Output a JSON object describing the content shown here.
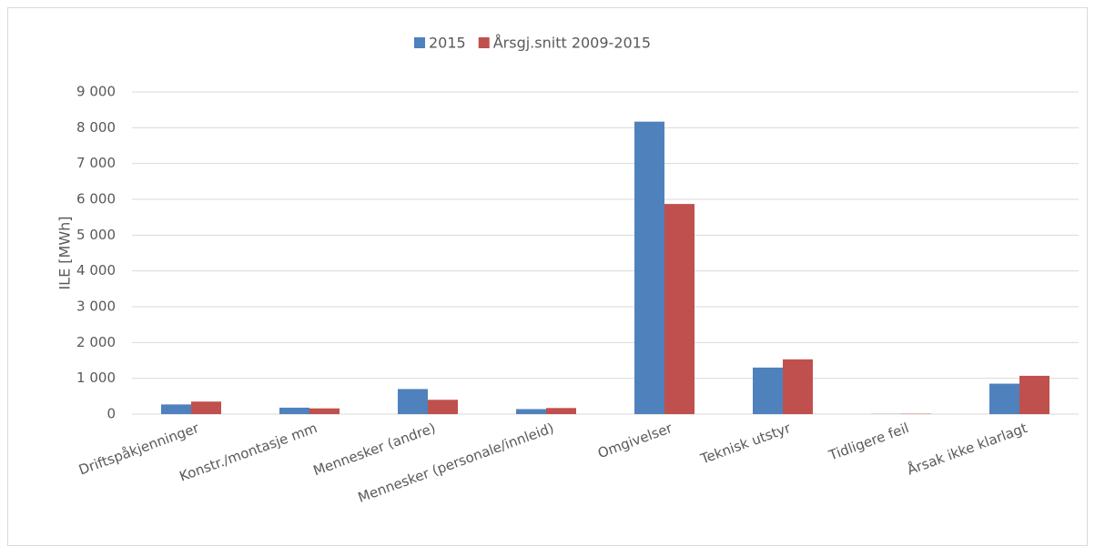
{
  "chart_data": {
    "type": "bar",
    "y_label": "ILE [MWh]",
    "categories": [
      "Driftspåkjenninger",
      "Konstr./montasje mm",
      "Mennesker (andre)",
      "Mennesker (personale/innleid)",
      "Omgivelser",
      "Teknisk utstyr",
      "Tidligere feil",
      "Årsak ikke klarlagt"
    ],
    "series": [
      {
        "name": "2015",
        "color": "#4f81bd",
        "values": [
          270,
          180,
          700,
          140,
          8170,
          1300,
          5,
          850
        ]
      },
      {
        "name": "Årsgj.snitt 2009-2015",
        "color": "#c0504d",
        "values": [
          350,
          160,
          400,
          170,
          5870,
          1530,
          10,
          1070
        ]
      }
    ],
    "ylim": [
      0,
      9000
    ],
    "yticks": [
      0,
      {
        "value": 1000,
        "label": "1 000"
      },
      {
        "value": 2000,
        "label": "2 000"
      },
      {
        "value": 3000,
        "label": "3 000"
      },
      {
        "value": 4000,
        "label": "4 000"
      },
      {
        "value": 5000,
        "label": "5 000"
      },
      {
        "value": 6000,
        "label": "6 000"
      },
      {
        "value": 7000,
        "label": "7 000"
      },
      {
        "value": 8000,
        "label": "8 000"
      },
      {
        "value": 9000,
        "label": "9 000"
      }
    ],
    "grid": true,
    "legend": "top"
  }
}
